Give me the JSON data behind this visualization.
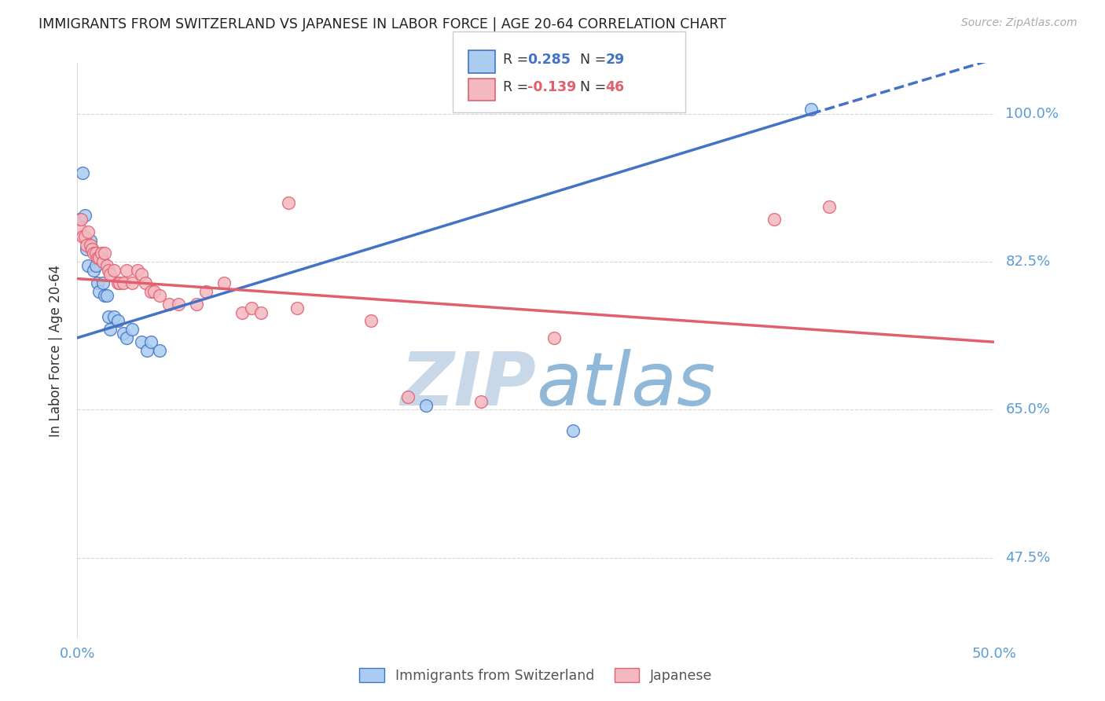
{
  "title": "IMMIGRANTS FROM SWITZERLAND VS JAPANESE IN LABOR FORCE | AGE 20-64 CORRELATION CHART",
  "source": "Source: ZipAtlas.com",
  "ylabel": "In Labor Force | Age 20-64",
  "ytick_labels": [
    "47.5%",
    "65.0%",
    "82.5%",
    "100.0%"
  ],
  "ytick_values": [
    0.475,
    0.65,
    0.825,
    1.0
  ],
  "xlim": [
    0.0,
    0.5
  ],
  "ylim": [
    0.38,
    1.06
  ],
  "R_swiss": 0.285,
  "N_swiss": 29,
  "R_japanese": -0.139,
  "N_japanese": 46,
  "title_color": "#222222",
  "source_color": "#aaaaaa",
  "ylabel_color": "#333333",
  "tick_color": "#5b9bd5",
  "grid_color": "#cccccc",
  "swiss_color": "#aaccf0",
  "japanese_color": "#f4b8c0",
  "trendline_swiss_color": "#4472c4",
  "trendline_japanese_color": "#e06070",
  "watermark_zip_color": "#c8d8e8",
  "watermark_atlas_color": "#90b8d8",
  "trendline_swiss_x0": 0.0,
  "trendline_swiss_y0": 0.735,
  "trendline_swiss_x1": 0.4,
  "trendline_swiss_y1": 1.0,
  "trendline_swiss_dashed_x1": 0.5,
  "trendline_swiss_dashed_y1": 1.065,
  "trendline_jap_x0": 0.0,
  "trendline_jap_y0": 0.805,
  "trendline_jap_x1": 0.5,
  "trendline_jap_y1": 0.73,
  "swiss_points": [
    [
      0.001,
      0.875
    ],
    [
      0.003,
      0.93
    ],
    [
      0.004,
      0.88
    ],
    [
      0.005,
      0.84
    ],
    [
      0.006,
      0.82
    ],
    [
      0.007,
      0.85
    ],
    [
      0.008,
      0.84
    ],
    [
      0.009,
      0.815
    ],
    [
      0.01,
      0.82
    ],
    [
      0.011,
      0.8
    ],
    [
      0.012,
      0.79
    ],
    [
      0.013,
      0.83
    ],
    [
      0.014,
      0.8
    ],
    [
      0.015,
      0.785
    ],
    [
      0.016,
      0.785
    ],
    [
      0.017,
      0.76
    ],
    [
      0.018,
      0.745
    ],
    [
      0.02,
      0.76
    ],
    [
      0.022,
      0.755
    ],
    [
      0.025,
      0.74
    ],
    [
      0.027,
      0.735
    ],
    [
      0.03,
      0.745
    ],
    [
      0.035,
      0.73
    ],
    [
      0.038,
      0.72
    ],
    [
      0.04,
      0.73
    ],
    [
      0.045,
      0.72
    ],
    [
      0.19,
      0.655
    ],
    [
      0.27,
      0.625
    ],
    [
      0.4,
      1.005
    ]
  ],
  "japanese_points": [
    [
      0.001,
      0.865
    ],
    [
      0.002,
      0.875
    ],
    [
      0.003,
      0.855
    ],
    [
      0.004,
      0.855
    ],
    [
      0.005,
      0.845
    ],
    [
      0.006,
      0.86
    ],
    [
      0.007,
      0.845
    ],
    [
      0.008,
      0.84
    ],
    [
      0.009,
      0.835
    ],
    [
      0.01,
      0.835
    ],
    [
      0.011,
      0.83
    ],
    [
      0.012,
      0.83
    ],
    [
      0.013,
      0.835
    ],
    [
      0.014,
      0.825
    ],
    [
      0.015,
      0.835
    ],
    [
      0.016,
      0.82
    ],
    [
      0.017,
      0.815
    ],
    [
      0.018,
      0.81
    ],
    [
      0.02,
      0.815
    ],
    [
      0.022,
      0.8
    ],
    [
      0.023,
      0.8
    ],
    [
      0.025,
      0.8
    ],
    [
      0.027,
      0.815
    ],
    [
      0.03,
      0.8
    ],
    [
      0.033,
      0.815
    ],
    [
      0.035,
      0.81
    ],
    [
      0.037,
      0.8
    ],
    [
      0.04,
      0.79
    ],
    [
      0.042,
      0.79
    ],
    [
      0.045,
      0.785
    ],
    [
      0.05,
      0.775
    ],
    [
      0.055,
      0.775
    ],
    [
      0.065,
      0.775
    ],
    [
      0.07,
      0.79
    ],
    [
      0.08,
      0.8
    ],
    [
      0.09,
      0.765
    ],
    [
      0.095,
      0.77
    ],
    [
      0.1,
      0.765
    ],
    [
      0.115,
      0.895
    ],
    [
      0.12,
      0.77
    ],
    [
      0.16,
      0.755
    ],
    [
      0.18,
      0.665
    ],
    [
      0.22,
      0.66
    ],
    [
      0.26,
      0.735
    ],
    [
      0.38,
      0.875
    ],
    [
      0.41,
      0.89
    ]
  ]
}
